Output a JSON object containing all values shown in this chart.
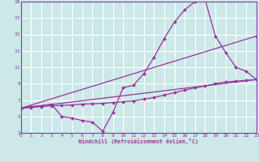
{
  "xlabel": "Windchill (Refroidissement éolien,°C)",
  "background_color": "#cce8e8",
  "grid_color": "#ffffff",
  "line_color": "#993399",
  "xmin": 0,
  "xmax": 23,
  "ymin": 3,
  "ymax": 19,
  "yticks": [
    3,
    5,
    7,
    9,
    11,
    13,
    15,
    17,
    19
  ],
  "xticks": [
    0,
    1,
    2,
    3,
    4,
    5,
    6,
    7,
    8,
    9,
    10,
    11,
    12,
    13,
    14,
    15,
    16,
    17,
    18,
    19,
    20,
    21,
    22,
    23
  ],
  "line1_x": [
    0,
    1,
    2,
    3,
    4,
    5,
    6,
    7,
    8,
    9,
    10,
    11,
    12,
    13,
    14,
    15,
    16,
    17,
    18,
    19,
    20,
    21,
    22,
    23
  ],
  "line1_y": [
    6.0,
    6.2,
    6.3,
    6.5,
    5.0,
    4.8,
    4.5,
    4.3,
    3.2,
    5.5,
    8.5,
    8.8,
    10.2,
    12.2,
    14.5,
    16.5,
    18.0,
    19.0,
    19.2,
    14.8,
    12.8,
    11.0,
    10.5,
    9.5
  ],
  "line2_x": [
    0,
    1,
    2,
    3,
    4,
    5,
    6,
    7,
    8,
    9,
    10,
    11,
    12,
    13,
    14,
    15,
    16,
    17,
    18,
    19,
    20,
    21,
    22,
    23
  ],
  "line2_y": [
    6.0,
    6.1,
    6.2,
    6.3,
    6.35,
    6.4,
    6.5,
    6.55,
    6.6,
    6.7,
    6.8,
    6.9,
    7.1,
    7.3,
    7.6,
    7.9,
    8.2,
    8.5,
    8.7,
    9.0,
    9.2,
    9.3,
    9.4,
    9.5
  ],
  "line3_x": [
    0,
    23
  ],
  "line3_y": [
    6.0,
    9.5
  ],
  "line4_x": [
    0,
    23
  ],
  "line4_y": [
    6.0,
    14.8
  ]
}
